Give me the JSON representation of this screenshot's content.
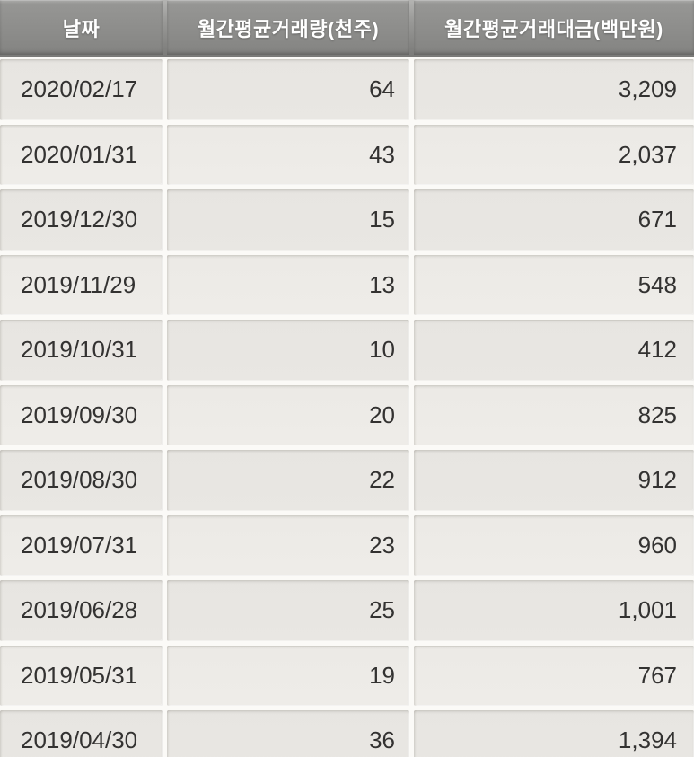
{
  "table": {
    "headers": [
      {
        "id": "date",
        "label": "날짜"
      },
      {
        "id": "volume",
        "label": "월간평균거래량(천주)"
      },
      {
        "id": "value",
        "label": "월간평균거래대금(백만원)"
      }
    ],
    "rows": [
      {
        "date": "2020/02/17",
        "volume": "64",
        "value": "3,209"
      },
      {
        "date": "2020/01/31",
        "volume": "43",
        "value": "2,037"
      },
      {
        "date": "2019/12/30",
        "volume": "15",
        "value": "671"
      },
      {
        "date": "2019/11/29",
        "volume": "13",
        "value": "548"
      },
      {
        "date": "2019/10/31",
        "volume": "10",
        "value": "412"
      },
      {
        "date": "2019/09/30",
        "volume": "20",
        "value": "825"
      },
      {
        "date": "2019/08/30",
        "volume": "22",
        "value": "912"
      },
      {
        "date": "2019/07/31",
        "volume": "23",
        "value": "960"
      },
      {
        "date": "2019/06/28",
        "volume": "25",
        "value": "1,001"
      },
      {
        "date": "2019/05/31",
        "volume": "19",
        "value": "767"
      },
      {
        "date": "2019/04/30",
        "volume": "36",
        "value": "1,394"
      }
    ]
  },
  "colors": {
    "header_bg": "#8d8d8b",
    "header_text": "#ffffff",
    "row_light": "#eceae6",
    "row_dark": "#e7e5e1",
    "gutter": "#fbfaf7",
    "cell_text": "#333231"
  }
}
